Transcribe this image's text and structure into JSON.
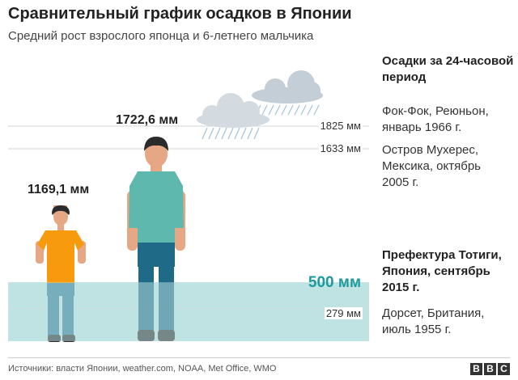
{
  "title": "Сравнительный график осадков в Японии",
  "subtitle": "Средний рост взрослого японца и 6-летнего мальчика",
  "legend_title": "Осадки за 24-часовой период",
  "source": "Источники: власти Японии, weather.com, NOAA, Met Office, WMO",
  "logo_letters": [
    "B",
    "B",
    "C"
  ],
  "colors": {
    "water": "#bfe3e3",
    "accent": "#1a9a9a",
    "cloud": "#c9d3da",
    "shirt_child": "#f79a0e",
    "shirt_adult": "#5fb8ae",
    "pants": "#1f6a87"
  },
  "chart_data": {
    "type": "pictogram",
    "y_unit": "мм",
    "people": [
      {
        "label": "1169,1 мм",
        "value": 1169.1
      },
      {
        "label": "1722,6 мм",
        "value": 1722.6
      }
    ],
    "levels": [
      {
        "value": 1825,
        "label": "1825 мм",
        "lines": [
          "Фок-Фок, Реюньон,",
          "январь 1966 г."
        ]
      },
      {
        "value": 1633,
        "label": "1633 мм",
        "lines": [
          "Остров Мухерес,",
          "Мексика, октябрь",
          "2005 г."
        ]
      },
      {
        "value": 500,
        "label": "500 мм",
        "lines": [
          "Префектура Тотиги,",
          "Япония, сентябрь",
          "2015 г."
        ]
      },
      {
        "value": 279,
        "label": "279 мм",
        "lines": [
          "Дорсет, Британия,",
          "июль 1955 г."
        ]
      }
    ]
  }
}
